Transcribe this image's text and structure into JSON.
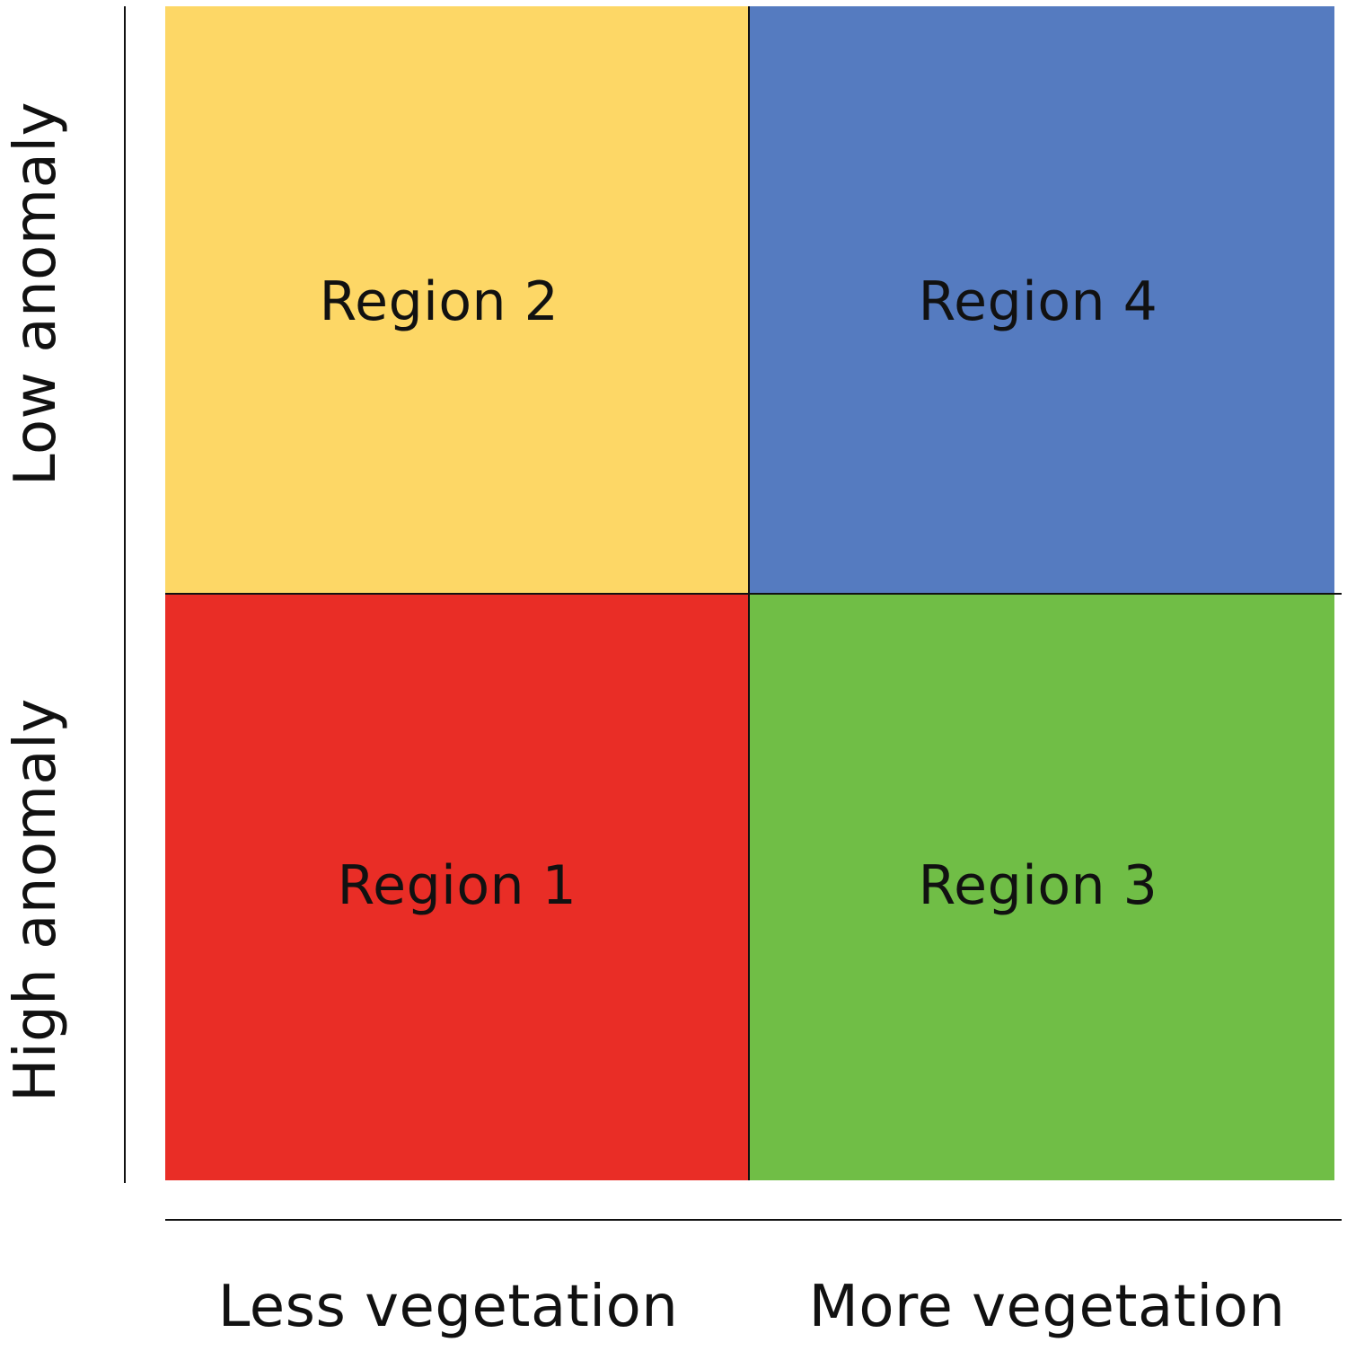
{
  "quadrants": {
    "top_left": {
      "label": "Region 2",
      "color": "#FDD766"
    },
    "top_right": {
      "label": "Region 4",
      "color": "#557BC0"
    },
    "bottom_left": {
      "label": "Region 1",
      "color": "#E92D26"
    },
    "bottom_right": {
      "label": "Region 3",
      "color": "#70BE46"
    }
  },
  "axes": {
    "x_left_label": "Less vegetation",
    "x_right_label": "More vegetation",
    "y_top_label": "Low anomaly",
    "y_bottom_label": "High anomaly",
    "line_color": "#111111"
  }
}
